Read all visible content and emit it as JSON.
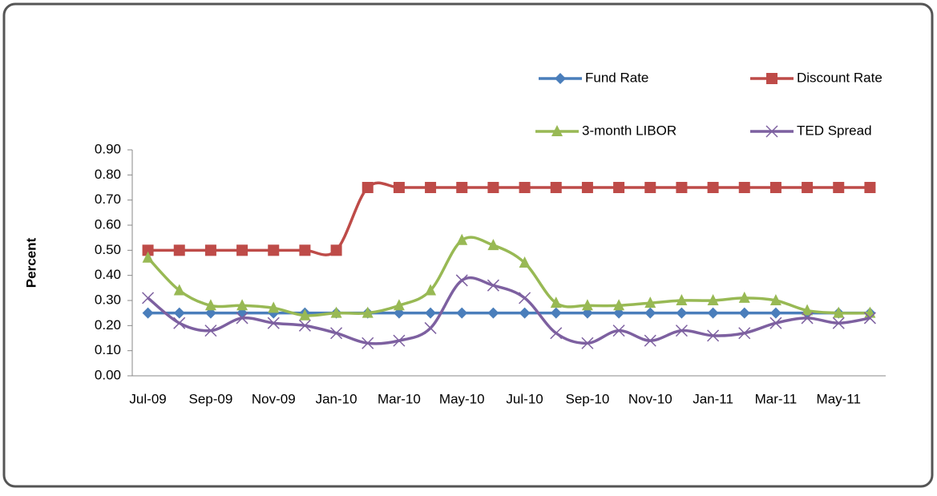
{
  "chart_data": {
    "type": "line",
    "y_label": "Percent",
    "categories": [
      "Jul-09",
      null,
      "Sep-09",
      null,
      "Nov-09",
      null,
      "Jan-10",
      null,
      "Mar-10",
      null,
      "May-10",
      null,
      "Jul-10",
      null,
      "Sep-10",
      null,
      "Nov-10",
      null,
      "Jan-11",
      null,
      "Mar-11",
      null,
      "May-11",
      null
    ],
    "series": [
      {
        "name": "Fund Rate",
        "color": "#4a7ebb",
        "marker": "diamond",
        "values": [
          0.25,
          0.25,
          0.25,
          0.25,
          0.25,
          0.25,
          0.25,
          0.25,
          0.25,
          0.25,
          0.25,
          0.25,
          0.25,
          0.25,
          0.25,
          0.25,
          0.25,
          0.25,
          0.25,
          0.25,
          0.25,
          0.25,
          0.25,
          0.25
        ]
      },
      {
        "name": "Discount Rate",
        "color": "#be4b48",
        "marker": "square",
        "values": [
          0.5,
          0.5,
          0.5,
          0.5,
          0.5,
          0.5,
          0.5,
          0.75,
          0.75,
          0.75,
          0.75,
          0.75,
          0.75,
          0.75,
          0.75,
          0.75,
          0.75,
          0.75,
          0.75,
          0.75,
          0.75,
          0.75,
          0.75,
          0.75
        ]
      },
      {
        "name": "3-month LIBOR",
        "color": "#98b954",
        "marker": "triangle",
        "values": [
          0.47,
          0.34,
          0.28,
          0.28,
          0.27,
          0.24,
          0.25,
          0.25,
          0.28,
          0.34,
          0.54,
          0.52,
          0.45,
          0.29,
          0.28,
          0.28,
          0.29,
          0.3,
          0.3,
          0.31,
          0.3,
          0.26,
          0.25,
          0.25
        ]
      },
      {
        "name": "TED Spread",
        "color": "#7d60a0",
        "marker": "x",
        "values": [
          0.31,
          0.21,
          0.18,
          0.23,
          0.21,
          0.2,
          0.17,
          0.13,
          0.14,
          0.19,
          0.38,
          0.36,
          0.31,
          0.17,
          0.13,
          0.18,
          0.14,
          0.18,
          0.16,
          0.17,
          0.21,
          0.23,
          0.21,
          0.23
        ]
      }
    ],
    "ylim": [
      0,
      0.9
    ],
    "yticks": [
      {
        "value": 0,
        "label": "0.00"
      },
      {
        "value": 0.1,
        "label": "0.10"
      },
      {
        "value": 0.2,
        "label": "0.20"
      },
      {
        "value": 0.3,
        "label": "0.30"
      },
      {
        "value": 0.4,
        "label": "0.40"
      },
      {
        "value": 0.5,
        "label": "0.50"
      },
      {
        "value": 0.6,
        "label": "0.60"
      },
      {
        "value": 0.7,
        "label": "0.70"
      },
      {
        "value": 0.8,
        "label": "0.80"
      },
      {
        "value": 0.9,
        "label": "0.90"
      }
    ],
    "grid": false
  }
}
